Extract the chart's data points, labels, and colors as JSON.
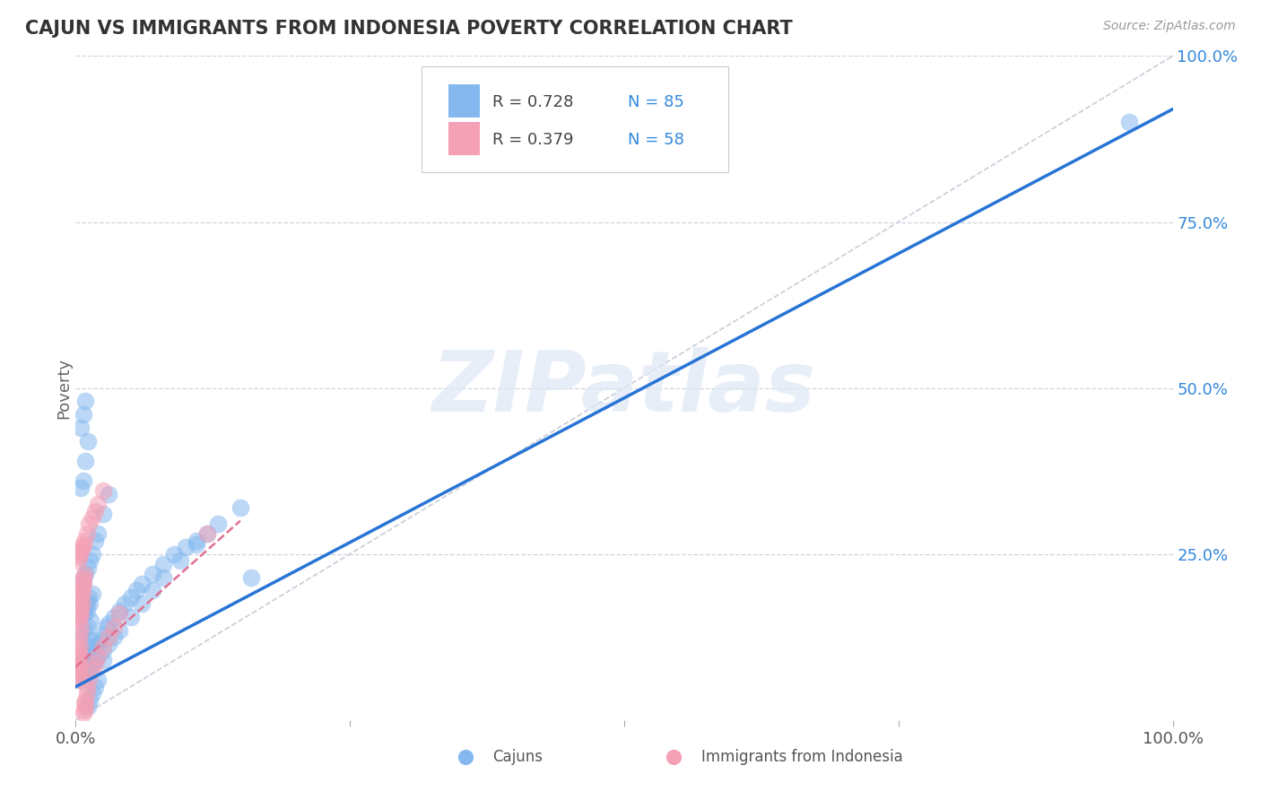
{
  "title": "CAJUN VS IMMIGRANTS FROM INDONESIA POVERTY CORRELATION CHART",
  "source": "Source: ZipAtlas.com",
  "ylabel": "Poverty",
  "legend_blue_r": "R = 0.728",
  "legend_blue_n": "N = 85",
  "legend_pink_r": "R = 0.379",
  "legend_pink_n": "N = 58",
  "legend_label1": "Cajuns",
  "legend_label2": "Immigrants from Indonesia",
  "watermark": "ZIPatlas",
  "blue_color": "#85b8ef",
  "pink_color": "#f4a0b5",
  "blue_line_color": "#2874d4",
  "pink_line_color": "#e07090",
  "diagonal_color": "#c8cdd8",
  "grid_color": "#d0d5e0",
  "title_color": "#333333",
  "axis_label_color": "#666666",
  "legend_r_color": "#444444",
  "legend_n_color": "#3388dd",
  "background_color": "#ffffff",
  "blue_scatter_x": [
    0.005,
    0.008,
    0.01,
    0.012,
    0.015,
    0.005,
    0.008,
    0.01,
    0.013,
    0.006,
    0.009,
    0.011,
    0.014,
    0.007,
    0.01,
    0.012,
    0.015,
    0.005,
    0.008,
    0.01,
    0.013,
    0.016,
    0.018,
    0.02,
    0.022,
    0.025,
    0.028,
    0.03,
    0.035,
    0.04,
    0.045,
    0.05,
    0.055,
    0.06,
    0.07,
    0.08,
    0.09,
    0.1,
    0.11,
    0.12,
    0.005,
    0.007,
    0.009,
    0.011,
    0.013,
    0.015,
    0.018,
    0.02,
    0.025,
    0.03,
    0.035,
    0.04,
    0.05,
    0.06,
    0.07,
    0.08,
    0.095,
    0.11,
    0.13,
    0.15,
    0.005,
    0.007,
    0.009,
    0.011,
    0.013,
    0.015,
    0.018,
    0.02,
    0.025,
    0.03,
    0.005,
    0.007,
    0.009,
    0.011,
    0.005,
    0.007,
    0.009,
    0.011,
    0.013,
    0.015,
    0.018,
    0.02,
    0.025,
    0.16,
    0.96
  ],
  "blue_scatter_y": [
    0.18,
    0.17,
    0.175,
    0.185,
    0.19,
    0.155,
    0.16,
    0.165,
    0.175,
    0.13,
    0.135,
    0.14,
    0.15,
    0.1,
    0.105,
    0.11,
    0.12,
    0.08,
    0.085,
    0.09,
    0.095,
    0.1,
    0.11,
    0.115,
    0.12,
    0.13,
    0.14,
    0.145,
    0.155,
    0.165,
    0.175,
    0.185,
    0.195,
    0.205,
    0.22,
    0.235,
    0.25,
    0.26,
    0.27,
    0.28,
    0.06,
    0.065,
    0.07,
    0.075,
    0.08,
    0.085,
    0.09,
    0.095,
    0.105,
    0.115,
    0.125,
    0.135,
    0.155,
    0.175,
    0.195,
    0.215,
    0.24,
    0.265,
    0.295,
    0.32,
    0.2,
    0.21,
    0.22,
    0.23,
    0.24,
    0.25,
    0.27,
    0.28,
    0.31,
    0.34,
    0.35,
    0.36,
    0.39,
    0.42,
    0.44,
    0.46,
    0.48,
    0.02,
    0.03,
    0.04,
    0.05,
    0.06,
    0.09,
    0.215,
    0.9
  ],
  "pink_scatter_x": [
    0.001,
    0.002,
    0.003,
    0.002,
    0.003,
    0.004,
    0.002,
    0.003,
    0.002,
    0.003,
    0.004,
    0.003,
    0.004,
    0.005,
    0.003,
    0.004,
    0.005,
    0.004,
    0.005,
    0.006,
    0.004,
    0.005,
    0.006,
    0.005,
    0.006,
    0.007,
    0.006,
    0.007,
    0.008,
    0.007,
    0.008,
    0.009,
    0.008,
    0.009,
    0.01,
    0.01,
    0.012,
    0.015,
    0.018,
    0.02,
    0.025,
    0.03,
    0.035,
    0.04,
    0.002,
    0.003,
    0.004,
    0.005,
    0.006,
    0.007,
    0.008,
    0.01,
    0.012,
    0.015,
    0.018,
    0.02,
    0.025,
    0.12
  ],
  "pink_scatter_y": [
    0.06,
    0.065,
    0.07,
    0.075,
    0.08,
    0.085,
    0.09,
    0.095,
    0.1,
    0.105,
    0.11,
    0.12,
    0.13,
    0.14,
    0.15,
    0.155,
    0.16,
    0.165,
    0.17,
    0.175,
    0.18,
    0.185,
    0.19,
    0.195,
    0.2,
    0.205,
    0.21,
    0.215,
    0.22,
    0.01,
    0.015,
    0.02,
    0.025,
    0.03,
    0.04,
    0.05,
    0.06,
    0.075,
    0.085,
    0.095,
    0.11,
    0.125,
    0.14,
    0.16,
    0.24,
    0.245,
    0.25,
    0.255,
    0.26,
    0.265,
    0.27,
    0.28,
    0.295,
    0.305,
    0.315,
    0.325,
    0.345,
    0.28
  ],
  "blue_line_x0": 0.0,
  "blue_line_y0": 0.05,
  "blue_line_x1": 1.0,
  "blue_line_y1": 0.92,
  "pink_line_x0": 0.0,
  "pink_line_y0": 0.08,
  "pink_line_x1": 0.15,
  "pink_line_y1": 0.3,
  "xlim": [
    0.0,
    1.0
  ],
  "ylim": [
    0.0,
    1.0
  ],
  "xticks": [
    0.0,
    0.25,
    0.5,
    0.75,
    1.0
  ],
  "yticks": [
    0.25,
    0.5,
    0.75,
    1.0
  ]
}
